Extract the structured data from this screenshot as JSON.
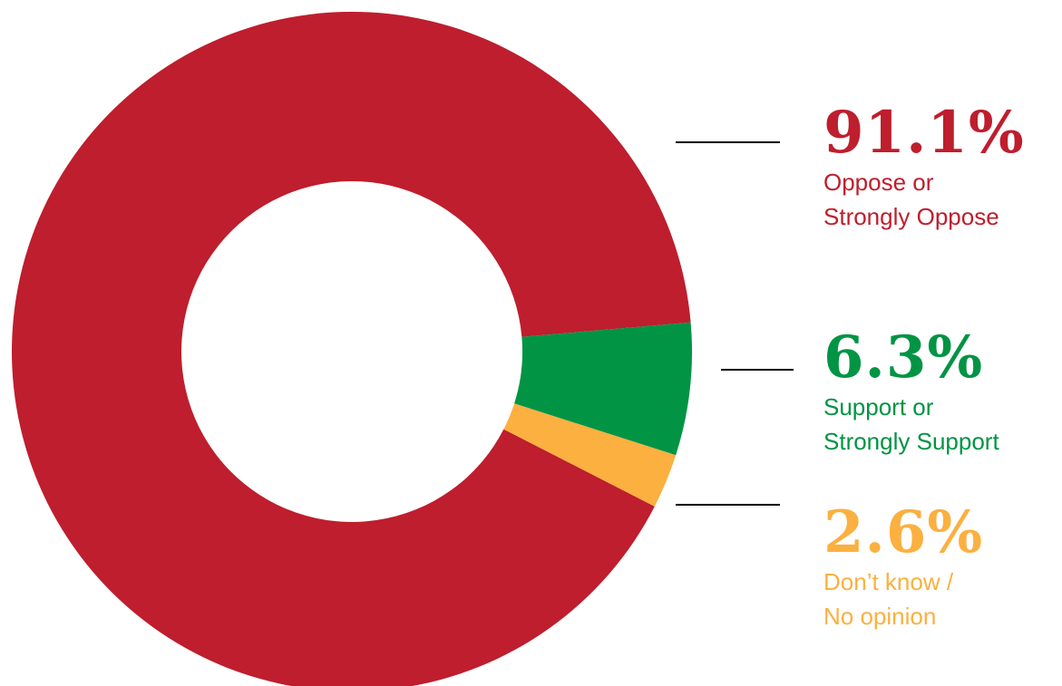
{
  "chart_data": {
    "type": "pie",
    "categories": [
      "Oppose or\nStrongly Oppose",
      "Support or\nStrongly Support",
      "Don’t know /\nNo opinion"
    ],
    "values": [
      91.1,
      6.3,
      2.6
    ],
    "value_labels": [
      "91.1%",
      "6.3%",
      "2.6%"
    ],
    "colors": [
      "#be1e2d",
      "#009444",
      "#fbb040"
    ],
    "donut": true
  }
}
